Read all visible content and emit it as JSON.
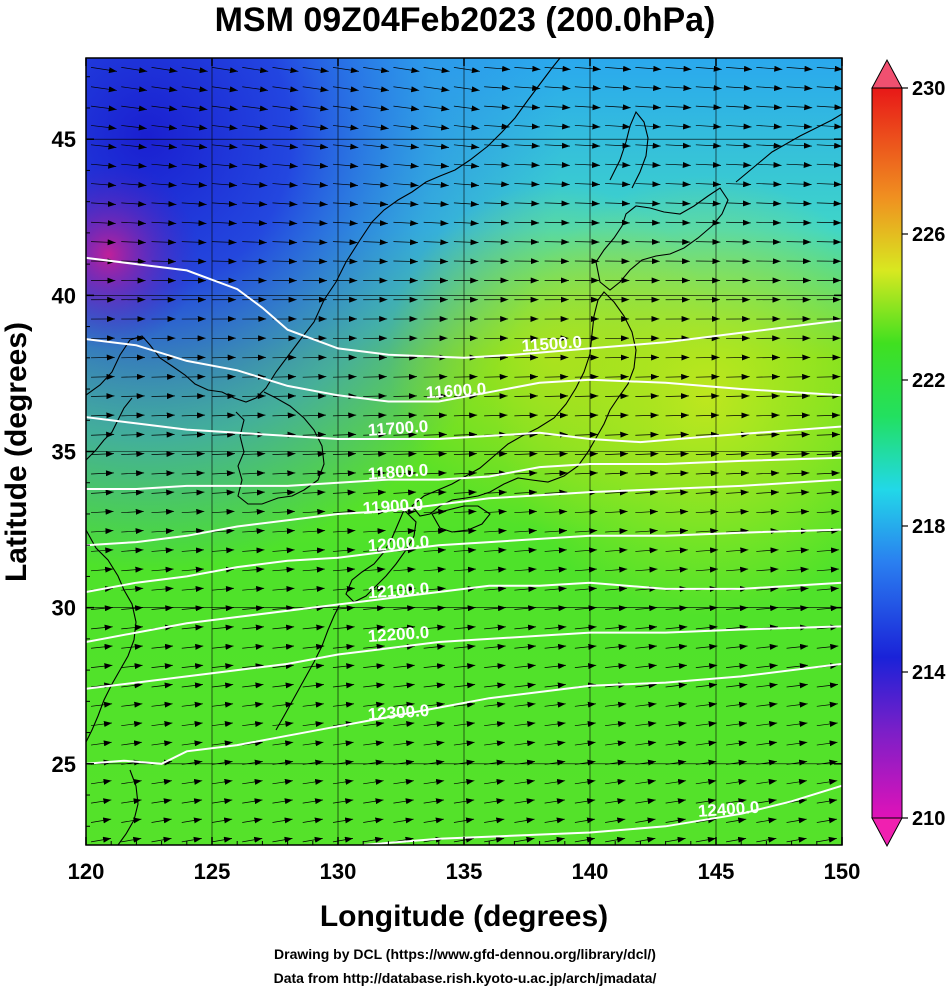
{
  "chart_data": {
    "type": "heatmap",
    "title": "MSM 09Z04Feb2023 (200.0hPa)",
    "xlabel": "Longitude (degrees)",
    "ylabel": "Latitude  (degrees)",
    "xlim": [
      120,
      150
    ],
    "ylim": [
      22.4,
      47.6
    ],
    "x_ticks": [
      120,
      125,
      130,
      135,
      140,
      145,
      150
    ],
    "y_ticks": [
      25,
      30,
      35,
      40,
      45
    ],
    "colorbar": {
      "range": [
        210,
        230
      ],
      "ticks": [
        210,
        214,
        218,
        222,
        226,
        230
      ]
    },
    "contours": [
      {
        "label": "11500.0",
        "label_at": [
          137.3,
          38.2
        ],
        "points": [
          [
            120,
            41.2
          ],
          [
            122,
            41.0
          ],
          [
            124,
            40.8
          ],
          [
            126,
            40.2
          ],
          [
            127,
            39.6
          ],
          [
            128,
            38.9
          ],
          [
            130,
            38.3
          ],
          [
            132,
            38.1
          ],
          [
            135,
            38.0
          ],
          [
            137,
            38.1
          ],
          [
            140,
            38.3
          ],
          [
            143,
            38.5
          ],
          [
            146,
            38.8
          ],
          [
            150,
            39.2
          ]
        ]
      },
      {
        "label": "11600.0",
        "label_at": [
          133.5,
          36.7
        ],
        "points": [
          [
            120,
            38.6
          ],
          [
            122,
            38.4
          ],
          [
            124,
            37.9
          ],
          [
            126,
            37.6
          ],
          [
            128,
            37.1
          ],
          [
            130,
            36.8
          ],
          [
            132,
            36.6
          ],
          [
            134,
            36.6
          ],
          [
            136,
            36.9
          ],
          [
            138,
            37.2
          ],
          [
            140,
            37.3
          ],
          [
            143,
            37.2
          ],
          [
            146,
            37.0
          ],
          [
            150,
            36.8
          ]
        ]
      },
      {
        "label": "11700.0",
        "label_at": [
          131.2,
          35.5
        ],
        "points": [
          [
            120,
            36.1
          ],
          [
            122,
            35.9
          ],
          [
            124,
            35.7
          ],
          [
            126,
            35.6
          ],
          [
            128,
            35.5
          ],
          [
            130,
            35.4
          ],
          [
            132,
            35.4
          ],
          [
            134,
            35.4
          ],
          [
            136,
            35.5
          ],
          [
            138,
            35.6
          ],
          [
            140,
            35.4
          ],
          [
            142,
            35.3
          ],
          [
            145,
            35.5
          ],
          [
            150,
            35.8
          ]
        ]
      },
      {
        "label": "11800.0",
        "label_at": [
          131.2,
          34.1
        ],
        "points": [
          [
            120,
            33.8
          ],
          [
            122,
            33.8
          ],
          [
            124,
            33.9
          ],
          [
            126,
            33.9
          ],
          [
            128,
            33.9
          ],
          [
            130,
            34.0
          ],
          [
            132,
            34.1
          ],
          [
            134,
            34.1
          ],
          [
            136,
            34.2
          ],
          [
            138,
            34.5
          ],
          [
            140,
            34.6
          ],
          [
            143,
            34.6
          ],
          [
            146,
            34.7
          ],
          [
            150,
            34.8
          ]
        ]
      },
      {
        "label": "11900.0",
        "label_at": [
          131.0,
          33.0
        ],
        "points": [
          [
            120,
            32.0
          ],
          [
            122,
            32.1
          ],
          [
            124,
            32.3
          ],
          [
            126,
            32.6
          ],
          [
            128,
            32.8
          ],
          [
            130,
            33.0
          ],
          [
            132,
            33.1
          ],
          [
            134,
            33.3
          ],
          [
            136,
            33.5
          ],
          [
            138,
            33.6
          ],
          [
            140,
            33.7
          ],
          [
            143,
            33.8
          ],
          [
            146,
            33.9
          ],
          [
            150,
            34.1
          ]
        ]
      },
      {
        "label": "12000.0",
        "label_at": [
          131.2,
          31.8
        ],
        "points": [
          [
            120,
            30.5
          ],
          [
            122,
            30.8
          ],
          [
            124,
            31.0
          ],
          [
            126,
            31.3
          ],
          [
            128,
            31.5
          ],
          [
            130,
            31.6
          ],
          [
            132,
            31.8
          ],
          [
            134,
            32.0
          ],
          [
            136,
            32.1
          ],
          [
            138,
            32.2
          ],
          [
            140,
            32.3
          ],
          [
            143,
            32.3
          ],
          [
            146,
            32.4
          ],
          [
            150,
            32.5
          ]
        ]
      },
      {
        "label": "12100.0",
        "label_at": [
          131.2,
          30.3
        ],
        "points": [
          [
            120,
            28.9
          ],
          [
            122,
            29.2
          ],
          [
            124,
            29.5
          ],
          [
            126,
            29.7
          ],
          [
            128,
            29.9
          ],
          [
            130,
            30.1
          ],
          [
            132,
            30.3
          ],
          [
            134,
            30.5
          ],
          [
            136,
            30.7
          ],
          [
            138,
            30.7
          ],
          [
            140,
            30.8
          ],
          [
            143,
            30.6
          ],
          [
            146,
            30.6
          ],
          [
            150,
            30.8
          ]
        ]
      },
      {
        "label": "12200.0",
        "label_at": [
          131.2,
          28.9
        ],
        "points": [
          [
            120,
            27.4
          ],
          [
            122,
            27.6
          ],
          [
            124,
            27.8
          ],
          [
            126,
            28.0
          ],
          [
            128,
            28.2
          ],
          [
            130,
            28.5
          ],
          [
            132,
            28.7
          ],
          [
            134,
            28.9
          ],
          [
            136,
            29.0
          ],
          [
            138,
            29.1
          ],
          [
            140,
            29.2
          ],
          [
            143,
            29.2
          ],
          [
            146,
            29.3
          ],
          [
            150,
            29.4
          ]
        ]
      },
      {
        "label": "12300.0",
        "label_at": [
          131.2,
          26.4
        ],
        "points": [
          [
            120,
            25.0
          ],
          [
            121.5,
            25.1
          ],
          [
            123,
            25.0
          ],
          [
            124,
            25.4
          ],
          [
            126,
            25.6
          ],
          [
            128,
            25.9
          ],
          [
            130,
            26.2
          ],
          [
            132,
            26.5
          ],
          [
            134,
            26.8
          ],
          [
            136,
            27.1
          ],
          [
            138,
            27.3
          ],
          [
            140,
            27.5
          ],
          [
            143,
            27.6
          ],
          [
            146,
            27.8
          ],
          [
            150,
            28.2
          ]
        ]
      },
      {
        "label": "12400.0",
        "label_at": [
          144.3,
          23.3
        ],
        "points": [
          [
            131,
            22.4
          ],
          [
            134,
            22.6
          ],
          [
            137,
            22.7
          ],
          [
            140,
            22.8
          ],
          [
            143,
            23.0
          ],
          [
            146,
            23.4
          ],
          [
            148,
            23.8
          ],
          [
            150,
            24.3
          ]
        ]
      }
    ]
  },
  "credits": {
    "line1": "Drawing by DCL (https://www.gfd-dennou.org/library/dcl/)",
    "line2": "Data from http://database.rish.kyoto-u.ac.jp/arch/jmadata/"
  }
}
